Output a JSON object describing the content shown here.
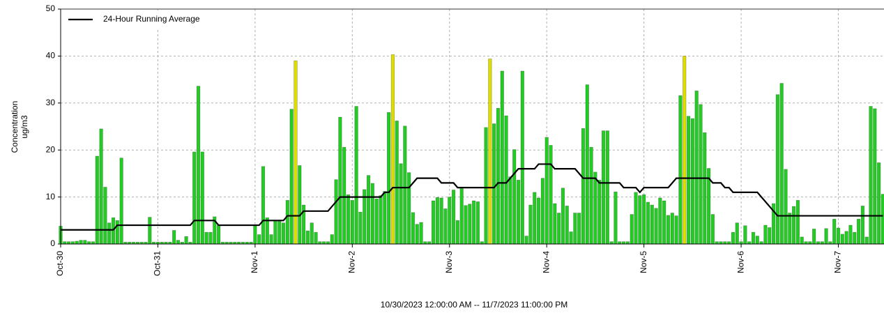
{
  "chart_data": {
    "type": "bar",
    "ylabel": "Concentration",
    "ylabel_unit": "ug/m3",
    "xlabel": "10/30/2023 12:00:00 AM -- 11/7/2023 11:00:00 PM",
    "ylim": [
      0,
      50
    ],
    "yticks": [
      0,
      10,
      20,
      30,
      40,
      50
    ],
    "grid": true,
    "legend": "upper left",
    "categories": [
      "Oct-30",
      null,
      null,
      null,
      null,
      null,
      null,
      null,
      null,
      null,
      null,
      null,
      null,
      null,
      null,
      null,
      null,
      null,
      null,
      null,
      null,
      null,
      null,
      null,
      "Oct-31",
      null,
      null,
      null,
      null,
      null,
      null,
      null,
      null,
      null,
      null,
      null,
      null,
      null,
      null,
      null,
      null,
      null,
      null,
      null,
      null,
      null,
      null,
      null,
      "Nov-1",
      null,
      null,
      null,
      null,
      null,
      null,
      null,
      null,
      null,
      null,
      null,
      null,
      null,
      null,
      null,
      null,
      null,
      null,
      null,
      null,
      null,
      null,
      null,
      "Nov-2",
      null,
      null,
      null,
      null,
      null,
      null,
      null,
      null,
      null,
      null,
      null,
      null,
      null,
      null,
      null,
      null,
      null,
      null,
      null,
      null,
      null,
      null,
      null,
      "Nov-3",
      null,
      null,
      null,
      null,
      null,
      null,
      null,
      null,
      null,
      null,
      null,
      null,
      null,
      null,
      null,
      null,
      null,
      null,
      null,
      null,
      null,
      null,
      null,
      "Nov-4",
      null,
      null,
      null,
      null,
      null,
      null,
      null,
      null,
      null,
      null,
      null,
      null,
      null,
      null,
      null,
      null,
      null,
      null,
      null,
      null,
      null,
      null,
      null,
      "Nov-5",
      null,
      null,
      null,
      null,
      null,
      null,
      null,
      null,
      null,
      null,
      null,
      null,
      null,
      null,
      null,
      null,
      null,
      null,
      null,
      null,
      null,
      null,
      null,
      "Nov-6",
      null,
      null,
      null,
      null,
      null,
      null,
      null,
      null,
      null,
      null,
      null,
      null,
      null,
      null,
      null,
      null,
      null,
      null,
      null,
      null,
      null,
      null,
      null,
      "Nov-7",
      null,
      null,
      null,
      null,
      null,
      null,
      null,
      null,
      null,
      null,
      null
    ],
    "series": [
      {
        "type": "bar",
        "values": [
          3.8,
          0.5,
          0.5,
          0.5,
          0.6,
          0.8,
          0.8,
          0.5,
          0.5,
          18.7,
          24.5,
          12.1,
          4.5,
          5.6,
          5.0,
          18.3,
          0.4,
          0.4,
          0.4,
          0.4,
          0.4,
          0.4,
          5.7,
          0.4,
          0.4,
          0.4,
          0.4,
          0.4,
          2.9,
          0.8,
          0.4,
          1.6,
          0.4,
          19.6,
          33.6,
          19.6,
          2.5,
          2.5,
          5.8,
          4.0,
          0.4,
          0.4,
          0.4,
          0.4,
          0.4,
          0.4,
          0.4,
          0.4,
          4.0,
          2.0,
          16.5,
          5.6,
          2.0,
          5.0,
          4.8,
          4.5,
          9.3,
          28.7,
          39.0,
          16.7,
          8.3,
          2.8,
          4.5,
          2.5,
          0.5,
          0.5,
          0.5,
          2.0,
          13.7,
          27.0,
          20.6,
          10.5,
          9.3,
          29.3,
          6.8,
          11.6,
          14.6,
          12.9,
          9.6,
          10.3,
          11.2,
          28.0,
          40.3,
          26.2,
          17.1,
          25.1,
          15.2,
          6.7,
          4.2,
          4.6,
          0.5,
          0.5,
          9.2,
          9.9,
          9.8,
          7.5,
          10.0,
          11.5,
          5.0,
          11.8,
          8.2,
          8.5,
          9.2,
          9.0,
          0.5,
          24.8,
          39.4,
          25.6,
          28.9,
          36.8,
          27.3,
          14.3,
          20.1,
          13.6,
          36.8,
          1.7,
          8.3,
          11.0,
          9.8,
          14.0,
          22.7,
          21.0,
          8.6,
          6.6,
          11.9,
          8.1,
          2.6,
          6.6,
          6.6,
          24.6,
          33.9,
          20.6,
          15.3,
          13.6,
          24.1,
          24.1,
          0.5,
          11.1,
          0.5,
          0.5,
          0.5,
          6.3,
          11.0,
          10.3,
          10.5,
          8.9,
          8.3,
          7.6,
          9.8,
          9.2,
          6.1,
          6.6,
          6.0,
          31.6,
          40.0,
          27.2,
          26.7,
          32.6,
          29.7,
          23.7,
          16.1,
          6.3,
          0.5,
          0.5,
          0.5,
          0.5,
          2.5,
          4.5,
          0.5,
          3.9,
          0.5,
          2.5,
          1.7,
          0.5,
          4.0,
          3.5,
          8.6,
          31.8,
          34.2,
          15.9,
          6.6,
          8.0,
          9.3,
          1.5,
          0.5,
          0.5,
          3.2,
          0.5,
          0.5,
          3.3,
          0.5,
          5.3,
          3.4,
          2.1,
          2.7,
          4.0,
          2.5,
          5.3,
          8.1,
          1.5,
          29.3,
          28.8,
          17.3,
          10.6
        ],
        "colors": [
          "#2c2",
          "#2c2",
          "#2c2",
          "#2c2",
          "#2c2",
          "#2c2",
          "#2c2",
          "#2c2",
          "#2c2",
          "#2c2",
          "#2c2",
          "#2c2",
          "#2c2",
          "#2c2",
          "#2c2",
          "#2c2",
          "#2c2",
          "#2c2",
          "#2c2",
          "#2c2",
          "#2c2",
          "#2c2",
          "#2c2",
          "#2c2",
          "#2c2",
          "#2c2",
          "#2c2",
          "#2c2",
          "#2c2",
          "#2c2",
          "#2c2",
          "#2c2",
          "#2c2",
          "#2c2",
          "#2c2",
          "#2c2",
          "#2c2",
          "#2c2",
          "#2c2",
          "#2c2",
          "#2c2",
          "#2c2",
          "#2c2",
          "#2c2",
          "#2c2",
          "#2c2",
          "#2c2",
          "#2c2",
          "#2c2",
          "#2c2",
          "#2c2",
          "#2c2",
          "#2c2",
          "#2c2",
          "#2c2",
          "#2c2",
          "#2c2",
          "#2c2",
          "#dd0",
          "#2c2",
          "#2c2",
          "#2c2",
          "#2c2",
          "#2c2",
          "#2c2",
          "#2c2",
          "#2c2",
          "#2c2",
          "#2c2",
          "#2c2",
          "#2c2",
          "#2c2",
          "#2c2",
          "#2c2",
          "#2c2",
          "#2c2",
          "#2c2",
          "#2c2",
          "#2c2",
          "#2c2",
          "#2c2",
          "#2c2",
          "#dd0",
          "#2c2",
          "#2c2",
          "#2c2",
          "#2c2",
          "#2c2",
          "#2c2",
          "#2c2",
          "#2c2",
          "#2c2",
          "#2c2",
          "#2c2",
          "#2c2",
          "#2c2",
          "#2c2",
          "#2c2",
          "#2c2",
          "#2c2",
          "#2c2",
          "#2c2",
          "#2c2",
          "#2c2",
          "#2c2",
          "#2c2",
          "#dd0",
          "#2c2",
          "#2c2",
          "#2c2",
          "#2c2",
          "#2c2",
          "#2c2",
          "#2c2",
          "#2c2",
          "#2c2",
          "#2c2",
          "#2c2",
          "#2c2",
          "#2c2",
          "#2c2",
          "#2c2",
          "#2c2",
          "#2c2",
          "#2c2",
          "#2c2",
          "#2c2",
          "#2c2",
          "#2c2",
          "#2c2",
          "#2c2",
          "#2c2",
          "#2c2",
          "#2c2",
          "#2c2",
          "#2c2",
          "#2c2",
          "#2c2",
          "#2c2",
          "#2c2",
          "#2c2",
          "#2c2",
          "#2c2",
          "#2c2",
          "#2c2",
          "#2c2",
          "#2c2",
          "#2c2",
          "#2c2",
          "#2c2",
          "#2c2",
          "#2c2",
          "#2c2",
          "#2c2",
          "#dd0",
          "#2c2",
          "#2c2",
          "#2c2",
          "#2c2",
          "#2c2",
          "#2c2",
          "#2c2",
          "#2c2",
          "#2c2",
          "#2c2",
          "#2c2",
          "#2c2",
          "#2c2",
          "#2c2",
          "#2c2",
          "#2c2",
          "#2c2",
          "#2c2",
          "#2c2",
          "#2c2",
          "#2c2",
          "#2c2",
          "#2c2",
          "#2c2",
          "#2c2",
          "#2c2",
          "#2c2",
          "#2c2",
          "#2c2",
          "#2c2",
          "#2c2",
          "#2c2",
          "#2c2",
          "#2c2",
          "#2c2",
          "#2c2",
          "#2c2",
          "#2c2",
          "#2c2",
          "#2c2",
          "#2c2",
          "#2c2",
          "#2c2",
          "#2c2",
          "#2c2",
          "#2c2",
          "#2c2",
          "#2c2",
          "#2c2"
        ]
      },
      {
        "type": "line",
        "name": "24-Hour Running Average",
        "color": "#000000",
        "values": [
          3,
          3,
          3,
          3,
          3,
          3,
          3,
          3,
          3,
          3,
          3,
          3,
          3,
          3,
          4,
          4,
          4,
          4,
          4,
          4,
          4,
          4,
          4,
          4,
          4,
          4,
          4,
          4,
          4,
          4,
          4,
          4,
          4,
          5,
          5,
          5,
          5,
          5,
          5,
          4,
          4,
          4,
          4,
          4,
          4,
          4,
          4,
          4,
          4,
          4,
          5,
          5,
          5,
          5,
          5,
          5,
          6,
          6,
          6,
          6,
          7,
          7,
          7,
          7,
          7,
          7,
          7,
          8,
          9,
          10,
          10,
          10,
          10,
          10,
          10,
          10,
          10,
          10,
          10,
          10,
          11,
          11,
          12,
          12,
          12,
          12,
          12,
          13,
          14,
          14,
          14,
          14,
          14,
          14,
          13,
          13,
          13,
          13,
          12,
          12,
          12,
          12,
          12,
          12,
          12,
          12,
          12,
          12,
          13,
          13,
          13,
          14,
          15,
          16,
          16,
          16,
          16,
          16,
          17,
          17,
          17,
          17,
          16,
          16,
          16,
          16,
          16,
          16,
          15,
          14,
          14,
          14,
          14,
          13,
          13,
          13,
          13,
          13,
          13,
          12,
          12,
          12,
          12,
          11,
          12,
          12,
          12,
          12,
          12,
          12,
          12,
          13,
          14,
          14,
          14,
          14,
          14,
          14,
          14,
          14,
          14,
          13,
          13,
          13,
          12,
          12,
          11,
          11,
          11,
          11,
          11,
          11,
          11,
          10,
          9,
          8,
          7,
          6,
          6,
          6,
          6,
          6,
          6,
          6,
          6,
          6,
          6,
          6,
          6,
          6,
          6,
          6,
          6,
          6,
          6,
          6,
          6,
          6,
          6,
          6,
          6,
          6,
          6,
          6
        ]
      }
    ]
  }
}
